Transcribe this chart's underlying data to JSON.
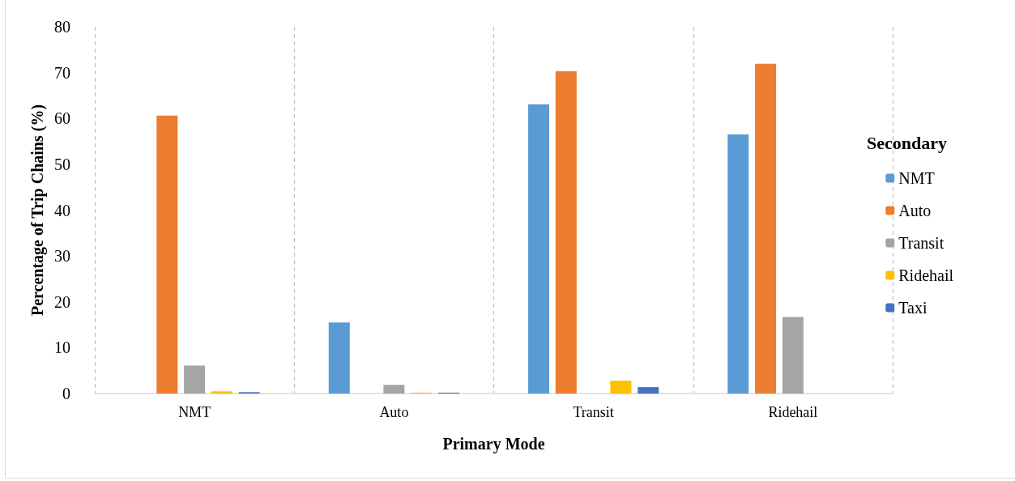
{
  "chart_data": {
    "type": "bar",
    "xlabel": "Primary Mode",
    "ylabel": "Percentage of Trip Chains (%)",
    "legend_title": "Secondary",
    "categories": [
      "NMT",
      "Auto",
      "Transit",
      "Ridehail"
    ],
    "series": [
      {
        "name": "NMT",
        "color": "#5b9bd5",
        "values": [
          0,
          15.5,
          63.1,
          56.5
        ]
      },
      {
        "name": "Auto",
        "color": "#ed7d31",
        "values": [
          60.6,
          0,
          70.3,
          71.9
        ]
      },
      {
        "name": "Transit",
        "color": "#a5a5a5",
        "values": [
          6.1,
          1.9,
          0,
          16.7
        ]
      },
      {
        "name": "Ridehail",
        "color": "#ffc000",
        "values": [
          0.5,
          0.2,
          2.8,
          0
        ]
      },
      {
        "name": "Taxi",
        "color": "#4472c4",
        "values": [
          0.3,
          0.2,
          1.4,
          0
        ]
      }
    ],
    "ylim": [
      0,
      80
    ],
    "yticks": [
      0,
      10,
      20,
      30,
      40,
      50,
      60,
      70,
      80
    ],
    "grid": "x",
    "legend": "right"
  }
}
